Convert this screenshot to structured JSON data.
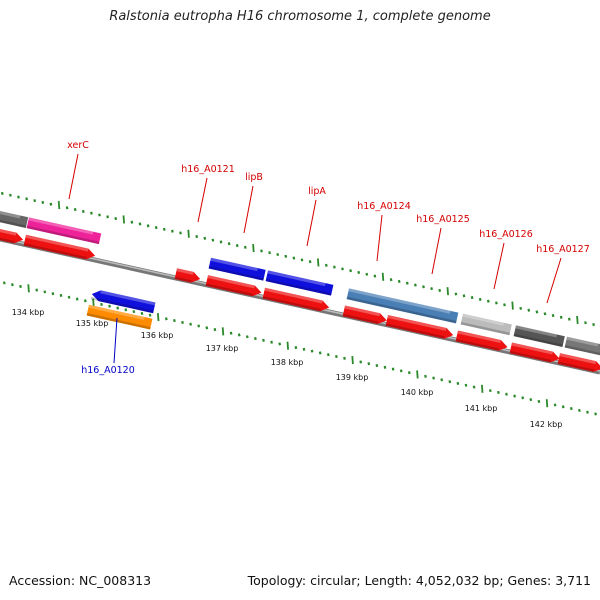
{
  "title": "Ralstonia eutropha H16 chromosome 1, complete genome",
  "footer": {
    "accession": "Accession: NC_008313",
    "stats": "Topology: circular; Length: 4,052,032 bp; Genes: 3,711"
  },
  "colors": {
    "backbone": "#8a8a8a",
    "tick": "#2a8a2a",
    "cds_red": "#ee1111",
    "gene_label_red": "#d40000",
    "gene_label_blue": "#0000c8"
  },
  "scale_labels": [
    "134 kbp",
    "135 kbp",
    "136 kbp",
    "137 kbp",
    "138 kbp",
    "139 kbp",
    "140 kbp",
    "141 kbp",
    "142 kbp"
  ],
  "gene_labels": [
    {
      "text": "xerC",
      "color": "red"
    },
    {
      "text": "h16_A0121",
      "color": "red"
    },
    {
      "text": "lipB",
      "color": "red"
    },
    {
      "text": "lipA",
      "color": "red"
    },
    {
      "text": "h16_A0124",
      "color": "red"
    },
    {
      "text": "h16_A0125",
      "color": "red"
    },
    {
      "text": "h16_A0126",
      "color": "red"
    },
    {
      "text": "h16_A0127",
      "color": "red"
    },
    {
      "text": "h16_A0120",
      "color": "blue"
    }
  ]
}
